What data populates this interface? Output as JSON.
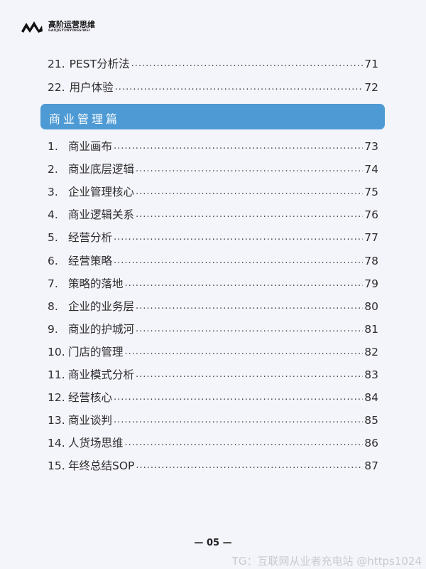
{
  "brand": {
    "name_cn": "高阶运营思维",
    "name_en": "GAOJIEYUNYINGSIWEI"
  },
  "prior_items": [
    {
      "num": "21.",
      "title": "PEST分析法",
      "page": "71"
    },
    {
      "num": "22.",
      "title": "用户体验",
      "page": "72"
    }
  ],
  "section": {
    "title": "商业管理篇",
    "color": "#4e9ad4"
  },
  "items": [
    {
      "num": "1.",
      "title": "商业画布",
      "page": "73"
    },
    {
      "num": "2.",
      "title": "商业底层逻辑",
      "page": "74"
    },
    {
      "num": "3.",
      "title": "企业管理核心",
      "page": "75"
    },
    {
      "num": "4.",
      "title": "商业逻辑关系",
      "page": "76"
    },
    {
      "num": "5.",
      "title": "经营分析",
      "page": "77"
    },
    {
      "num": "6.",
      "title": "经营策略",
      "page": "78"
    },
    {
      "num": "7.",
      "title": "策略的落地",
      "page": "79"
    },
    {
      "num": "8.",
      "title": "企业的业务层",
      "page": "80"
    },
    {
      "num": "9.",
      "title": "商业的护城河",
      "page": "81"
    },
    {
      "num": "10.",
      "title": "门店的管理",
      "page": "82"
    },
    {
      "num": "11.",
      "title": "商业模式分析",
      "page": "83"
    },
    {
      "num": "12.",
      "title": "经营核心",
      "page": "84"
    },
    {
      "num": "13.",
      "title": "商业谈判",
      "page": "85"
    },
    {
      "num": "14.",
      "title": "人货场思维",
      "page": "86"
    },
    {
      "num": "15.",
      "title": "年终总结SOP",
      "page": "87"
    }
  ],
  "footer": {
    "page_number": "— 05 —",
    "watermark": "TG：互联网从业者充电站 @https1024"
  }
}
